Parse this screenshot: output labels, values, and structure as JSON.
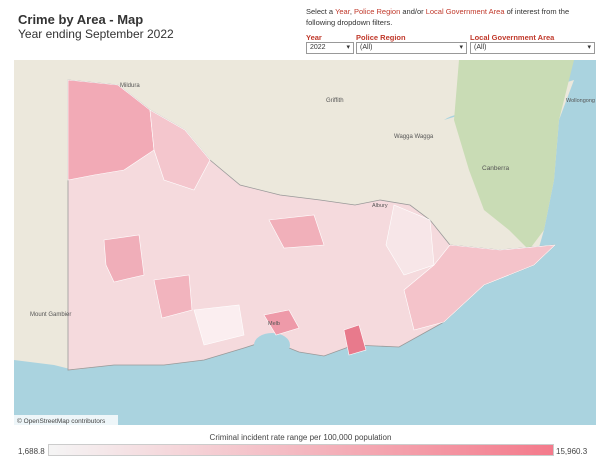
{
  "header": {
    "title": "Crime by Area - Map",
    "subtitle": "Year ending September 2022"
  },
  "instructions": {
    "parts": [
      "Select a ",
      "Year",
      ", ",
      "Police Region",
      " and/or ",
      "Local Government Area",
      " of interest from the following dropdown filters."
    ]
  },
  "filters": [
    {
      "label": "Year",
      "value": "2022"
    },
    {
      "label": "Police Region",
      "value": "(All)"
    },
    {
      "label": "Local Government Area",
      "value": "(All)"
    }
  ],
  "map": {
    "places": [
      "Mildura",
      "Griffith",
      "Wagga Wagga",
      "Canberra",
      "Albury",
      "Wollongong",
      "Mount Gambier",
      "Melb"
    ],
    "attribution": "© OpenStreetMap contributors"
  },
  "legend": {
    "title": "Criminal incident rate range per 100,000 population",
    "min": "1,688.8",
    "max": "15,960.3"
  }
}
